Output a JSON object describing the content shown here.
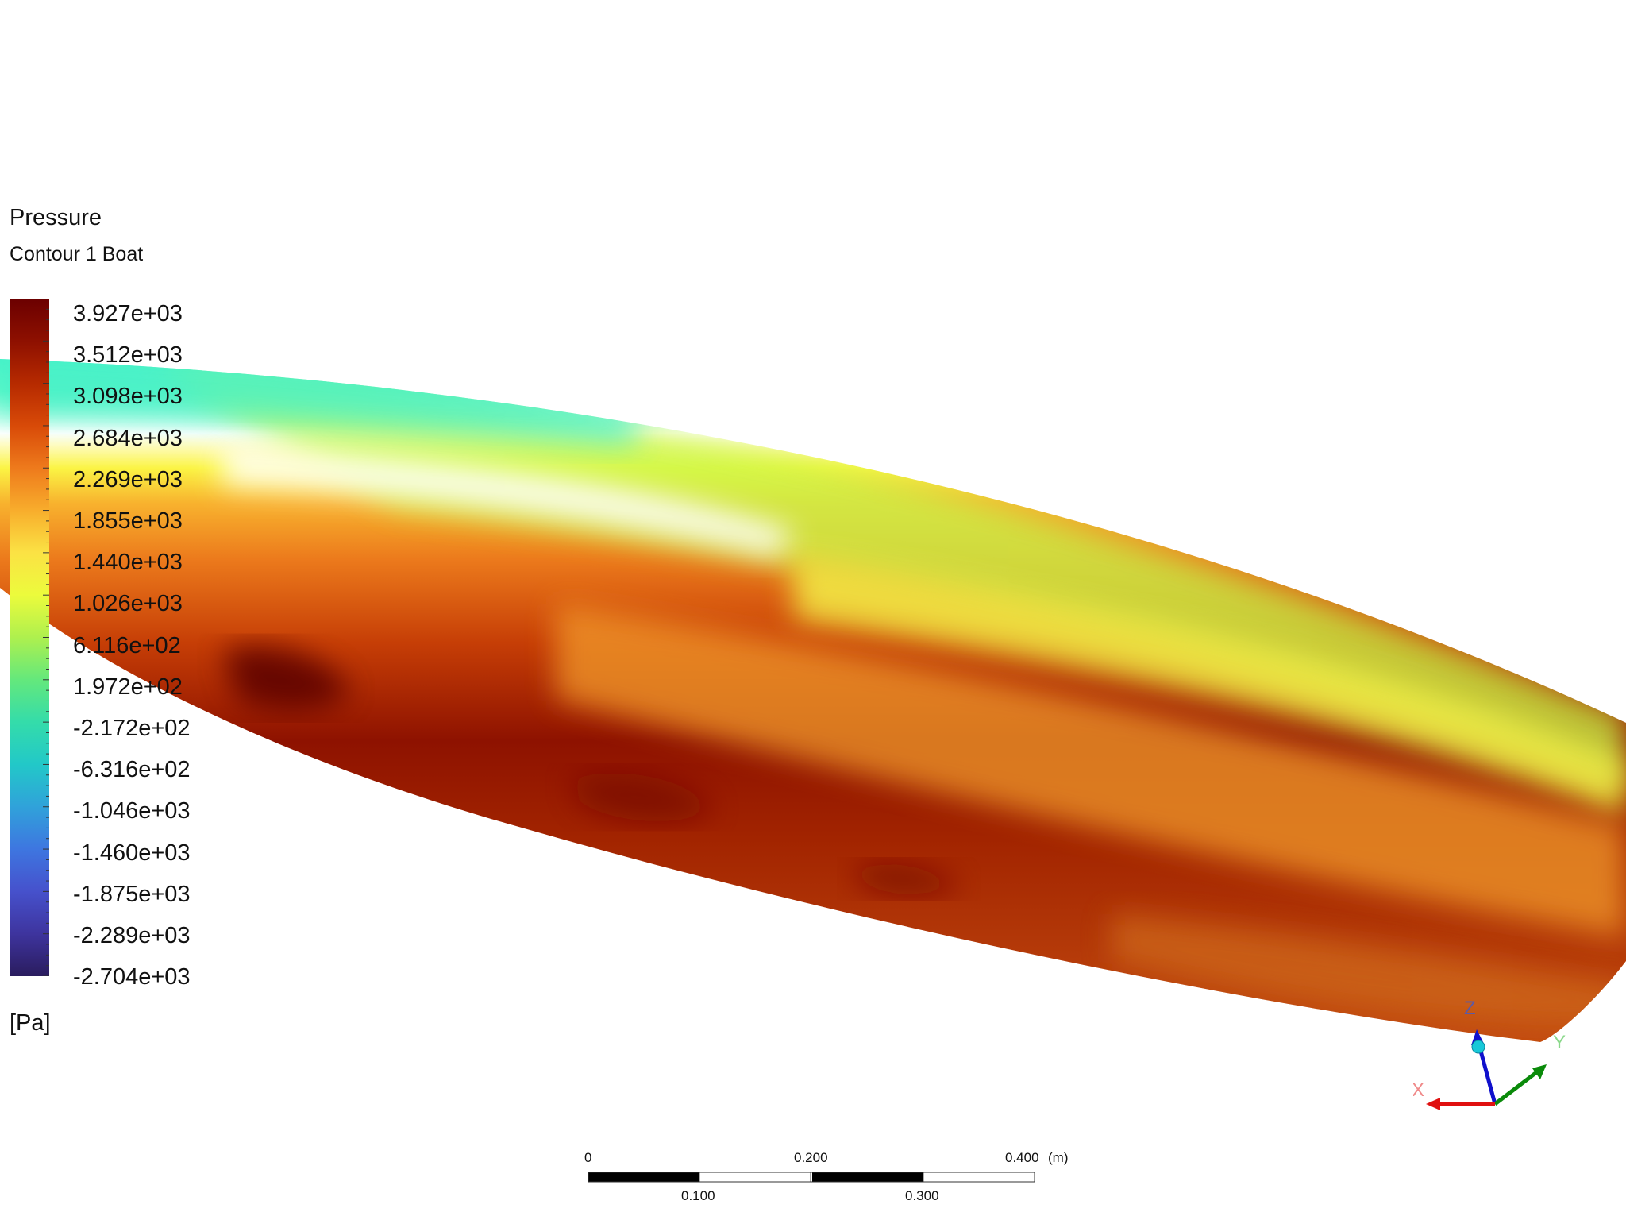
{
  "legend": {
    "title": "Pressure",
    "subtitle": "Contour 1 Boat",
    "unit": "[Pa]",
    "labels": [
      "3.927e+03",
      "3.512e+03",
      "3.098e+03",
      "2.684e+03",
      "2.269e+03",
      "1.855e+03",
      "1.440e+03",
      "1.026e+03",
      "6.116e+02",
      "1.972e+02",
      "-2.172e+02",
      "-6.316e+02",
      "-1.046e+03",
      "-1.460e+03",
      "-1.875e+03",
      "-2.289e+03",
      "-2.704e+03"
    ],
    "colors": [
      "#6b0000",
      "#8e1000",
      "#b62a00",
      "#d84a08",
      "#ee7a1c",
      "#f8ad2c",
      "#fbe244",
      "#ecfb3c",
      "#aef04e",
      "#64e87c",
      "#34dcaa",
      "#22c8c8",
      "#30a2da",
      "#3e76e0",
      "#4651cc",
      "#3e349e",
      "#2a1c5e"
    ]
  },
  "scale_bar": {
    "top_labels": [
      "0",
      "0.200",
      "0.400"
    ],
    "bottom_labels": [
      "0.100",
      "0.300"
    ],
    "unit": "(m)"
  },
  "triad": {
    "axes": [
      "X",
      "Y",
      "Z"
    ],
    "colors": {
      "x": "#e01010",
      "y": "#0a8a0a",
      "z": "#1010cc"
    }
  }
}
